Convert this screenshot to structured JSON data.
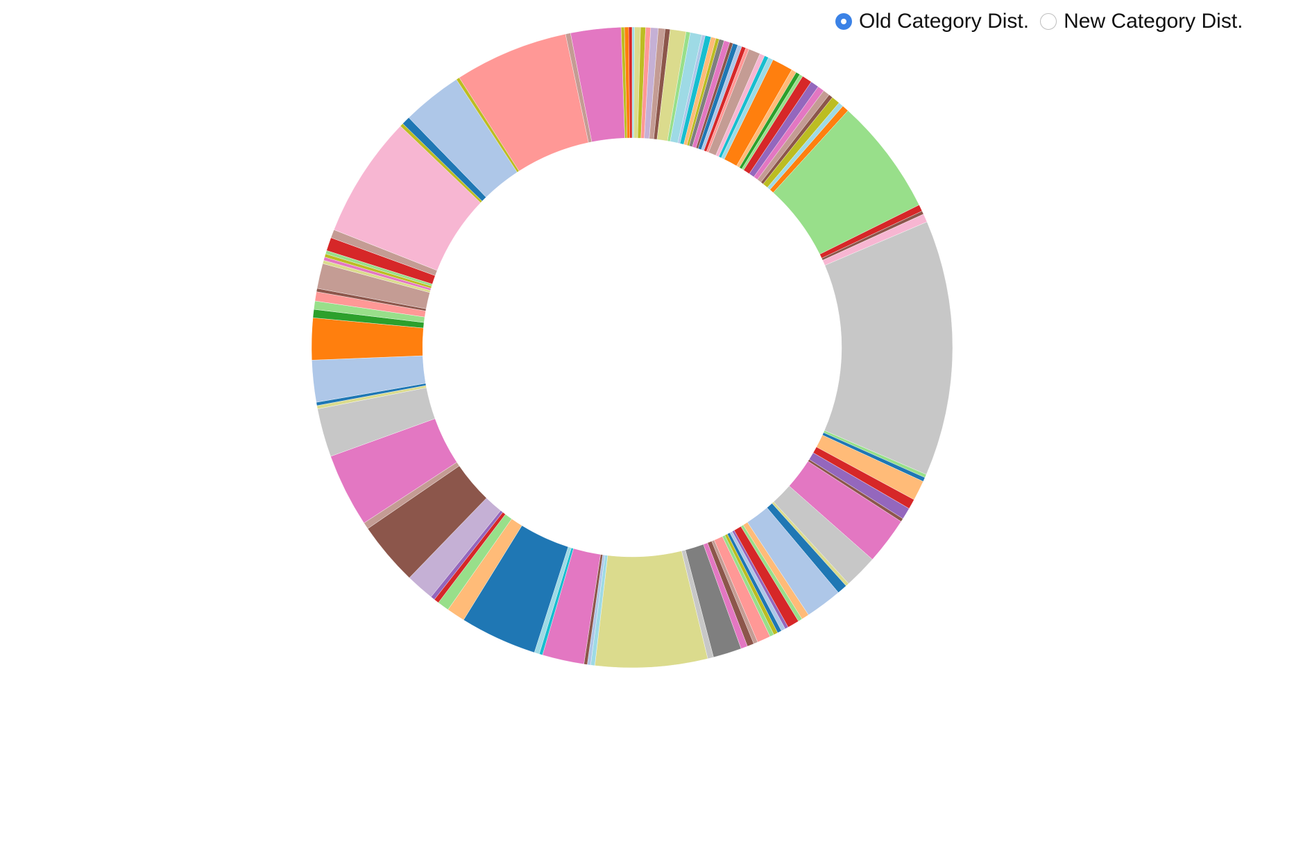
{
  "controls": {
    "options": [
      {
        "label": "Old Category Dist.",
        "checked": true
      },
      {
        "label": "New Category Dist.",
        "checked": false
      }
    ]
  },
  "chart_data": {
    "type": "pie",
    "variant": "donut",
    "title": "",
    "legend": "none",
    "unit": "share",
    "slices": [
      {
        "value": 0.15,
        "color": "#9edae5"
      },
      {
        "value": 0.35,
        "color": "#dbdb8d"
      },
      {
        "value": 0.3,
        "color": "#bcbd22"
      },
      {
        "value": 0.3,
        "color": "#ff9896"
      },
      {
        "value": 0.45,
        "color": "#c5b0d5"
      },
      {
        "value": 0.4,
        "color": "#c49c94"
      },
      {
        "value": 0.3,
        "color": "#8c564b"
      },
      {
        "value": 0.95,
        "color": "#dbdb8d"
      },
      {
        "value": 0.25,
        "color": "#98df8a"
      },
      {
        "value": 0.7,
        "color": "#9edae5"
      },
      {
        "value": 0.2,
        "color": "#aec7e8"
      },
      {
        "value": 0.35,
        "color": "#17becf"
      },
      {
        "value": 0.3,
        "color": "#ffbb78"
      },
      {
        "value": 0.2,
        "color": "#bcbd22"
      },
      {
        "value": 0.3,
        "color": "#7f7f7f"
      },
      {
        "value": 0.35,
        "color": "#e377c2"
      },
      {
        "value": 0.2,
        "color": "#8c564b"
      },
      {
        "value": 0.3,
        "color": "#1f77b4"
      },
      {
        "value": 0.25,
        "color": "#aec7e8"
      },
      {
        "value": 0.25,
        "color": "#d62728"
      },
      {
        "value": 0.2,
        "color": "#ff9896"
      },
      {
        "value": 0.7,
        "color": "#c49c94"
      },
      {
        "value": 0.3,
        "color": "#f7b6d2"
      },
      {
        "value": 0.25,
        "color": "#17becf"
      },
      {
        "value": 0.3,
        "color": "#9edae5"
      },
      {
        "value": 1.25,
        "color": "#ff7f0e"
      },
      {
        "value": 0.3,
        "color": "#ffbb78"
      },
      {
        "value": 0.25,
        "color": "#2ca02c"
      },
      {
        "value": 0.2,
        "color": "#98df8a"
      },
      {
        "value": 0.6,
        "color": "#d62728"
      },
      {
        "value": 0.5,
        "color": "#9467bd"
      },
      {
        "value": 0.4,
        "color": "#e377c2"
      },
      {
        "value": 0.4,
        "color": "#c49c94"
      },
      {
        "value": 0.25,
        "color": "#8c564b"
      },
      {
        "value": 0.5,
        "color": "#bcbd22"
      },
      {
        "value": 0.3,
        "color": "#9edae5"
      },
      {
        "value": 0.4,
        "color": "#ff7f0e"
      },
      {
        "value": 7.0,
        "color": "#98df8a"
      },
      {
        "value": 0.4,
        "color": "#d62728"
      },
      {
        "value": 0.2,
        "color": "#8c564b"
      },
      {
        "value": 0.5,
        "color": "#f7b6d2"
      },
      {
        "value": 15.3,
        "color": "#c7c7c7"
      },
      {
        "value": 0.2,
        "color": "#98df8a"
      },
      {
        "value": 0.25,
        "color": "#1f77b4"
      },
      {
        "value": 1.2,
        "color": "#ffbb78"
      },
      {
        "value": 0.6,
        "color": "#d62728"
      },
      {
        "value": 0.7,
        "color": "#9467bd"
      },
      {
        "value": 0.2,
        "color": "#8c564b"
      },
      {
        "value": 2.8,
        "color": "#e377c2"
      },
      {
        "value": 2.0,
        "color": "#c7c7c7"
      },
      {
        "value": 0.2,
        "color": "#dbdb8d"
      },
      {
        "value": 0.6,
        "color": "#1f77b4"
      },
      {
        "value": 2.2,
        "color": "#aec7e8"
      },
      {
        "value": 0.45,
        "color": "#ffbb78"
      },
      {
        "value": 0.25,
        "color": "#98df8a"
      },
      {
        "value": 0.7,
        "color": "#d62728"
      },
      {
        "value": 0.2,
        "color": "#9467bd"
      },
      {
        "value": 0.25,
        "color": "#aec7e8"
      },
      {
        "value": 0.25,
        "color": "#1f77b4"
      },
      {
        "value": 0.25,
        "color": "#bcbd22"
      },
      {
        "value": 0.25,
        "color": "#98df8a"
      },
      {
        "value": 0.8,
        "color": "#ff9896"
      },
      {
        "value": 0.25,
        "color": "#c49c94"
      },
      {
        "value": 0.4,
        "color": "#8c564b"
      },
      {
        "value": 0.4,
        "color": "#e377c2"
      },
      {
        "value": 1.7,
        "color": "#7f7f7f"
      },
      {
        "value": 0.35,
        "color": "#c7c7c7"
      },
      {
        "value": 6.7,
        "color": "#dbdb8d"
      },
      {
        "value": 0.25,
        "color": "#9edae5"
      },
      {
        "value": 0.2,
        "color": "#aec7e8"
      },
      {
        "value": 0.2,
        "color": "#8c564b"
      },
      {
        "value": 2.5,
        "color": "#e377c2"
      },
      {
        "value": 0.2,
        "color": "#17becf"
      },
      {
        "value": 0.3,
        "color": "#9edae5"
      },
      {
        "value": 4.6,
        "color": "#1f77b4"
      },
      {
        "value": 1.1,
        "color": "#ffbb78"
      },
      {
        "value": 0.7,
        "color": "#98df8a"
      },
      {
        "value": 0.3,
        "color": "#d62728"
      },
      {
        "value": 0.25,
        "color": "#9467bd"
      },
      {
        "value": 1.7,
        "color": "#c5b0d5"
      },
      {
        "value": 3.8,
        "color": "#8c564b"
      },
      {
        "value": 0.4,
        "color": "#c49c94"
      },
      {
        "value": 4.4,
        "color": "#e377c2"
      },
      {
        "value": 2.9,
        "color": "#c7c7c7"
      },
      {
        "value": 0.2,
        "color": "#dbdb8d"
      },
      {
        "value": 0.2,
        "color": "#1f77b4"
      },
      {
        "value": 2.5,
        "color": "#aec7e8"
      },
      {
        "value": 2.5,
        "color": "#ff7f0e"
      },
      {
        "value": 0.5,
        "color": "#2ca02c"
      },
      {
        "value": 0.5,
        "color": "#98df8a"
      },
      {
        "value": 0.55,
        "color": "#ff9896"
      },
      {
        "value": 0.2,
        "color": "#8c564b"
      },
      {
        "value": 1.5,
        "color": "#c49c94"
      },
      {
        "value": 0.2,
        "color": "#dbdb8d"
      },
      {
        "value": 0.2,
        "color": "#e377c2"
      },
      {
        "value": 0.2,
        "color": "#bcbd22"
      },
      {
        "value": 0.2,
        "color": "#98df8a"
      },
      {
        "value": 0.8,
        "color": "#d62728"
      },
      {
        "value": 0.5,
        "color": "#c49c94"
      },
      {
        "value": 7.3,
        "color": "#f7b6d2"
      },
      {
        "value": 0.2,
        "color": "#bcbd22"
      },
      {
        "value": 0.5,
        "color": "#1f77b4"
      },
      {
        "value": 3.6,
        "color": "#aec7e8"
      },
      {
        "value": 0.2,
        "color": "#bcbd22"
      },
      {
        "value": 6.8,
        "color": "#ff9896"
      },
      {
        "value": 0.3,
        "color": "#c49c94"
      },
      {
        "value": 3.0,
        "color": "#e377c2"
      },
      {
        "value": 0.2,
        "color": "#bcbd22"
      },
      {
        "value": 0.25,
        "color": "#ff7f0e"
      },
      {
        "value": 0.2,
        "color": "#d62728"
      }
    ]
  }
}
